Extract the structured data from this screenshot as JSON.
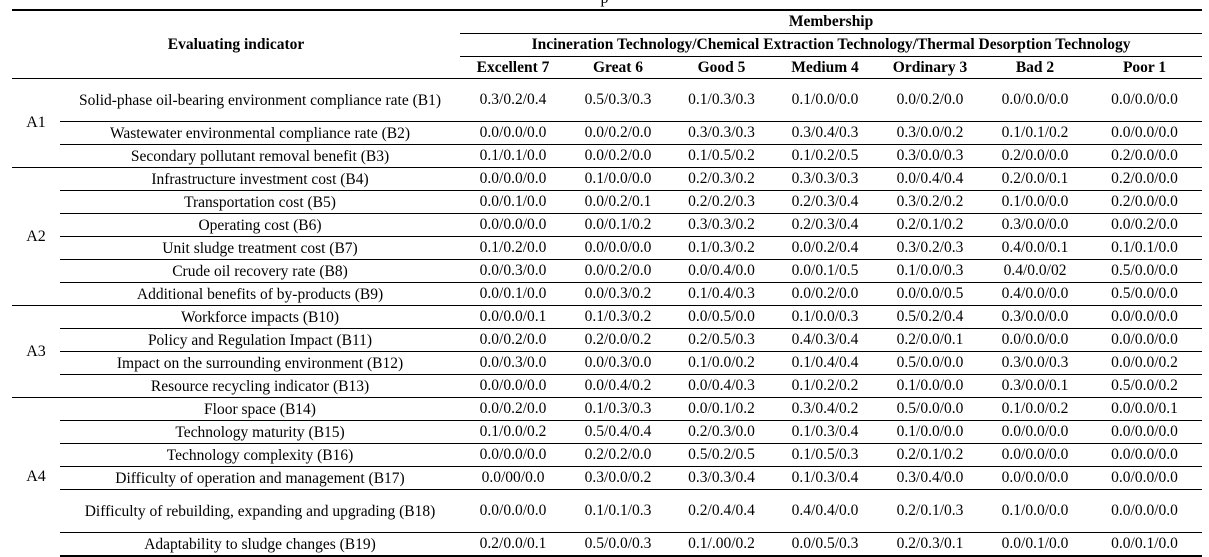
{
  "caption_fragment": "p",
  "table": {
    "header": {
      "evaluating_indicator": "Evaluating indicator",
      "membership": "Membership",
      "technologies": "Incineration Technology/Chemical Extraction Technology/Thermal Desorption Technology",
      "grades": [
        "Excellent 7",
        "Great 6",
        "Good 5",
        "Medium 4",
        "Ordinary 3",
        "Bad 2",
        "Poor 1"
      ]
    },
    "groups": [
      {
        "label": "A1",
        "rows": [
          {
            "indicator": "Solid-phase oil-bearing environment compliance rate (B1)",
            "values": [
              "0.3/0.2/0.4",
              "0.5/0.3/0.3",
              "0.1/0.3/0.3",
              "0.1/0.0/0.0",
              "0.0/0.2/0.0",
              "0.0/0.0/0.0",
              "0.0/0.0/0.0"
            ]
          },
          {
            "indicator": "Wastewater environmental compliance rate (B2)",
            "values": [
              "0.0/0.0/0.0",
              "0.0/0.2/0.0",
              "0.3/0.3/0.3",
              "0.3/0.4/0.3",
              "0.3/0.0/0.2",
              "0.1/0.1/0.2",
              "0.0/0.0/0.0"
            ]
          },
          {
            "indicator": "Secondary pollutant removal benefit (B3)",
            "values": [
              "0.1/0.1/0.0",
              "0.0/0.2/0.0",
              "0.1/0.5/0.2",
              "0.1/0.2/0.5",
              "0.3/0.0/0.3",
              "0.2/0.0/0.0",
              "0.2/0.0/0.0"
            ]
          }
        ]
      },
      {
        "label": "A2",
        "rows": [
          {
            "indicator": "Infrastructure investment cost (B4)",
            "values": [
              "0.0/0.0/0.0",
              "0.1/0.0/0.0",
              "0.2/0.3/0.2",
              "0.3/0.3/0.3",
              "0.0/0.4/0.4",
              "0.2/0.0/0.1",
              "0.2/0.0/0.0"
            ]
          },
          {
            "indicator": "Transportation cost (B5)",
            "values": [
              "0.0/0.1/0.0",
              "0.0/0.2/0.1",
              "0.2/0.2/0.3",
              "0.2/0.3/0.4",
              "0.3/0.2/0.2",
              "0.1/0.0/0.0",
              "0.2/0.0/0.0"
            ]
          },
          {
            "indicator": "Operating cost (B6)",
            "values": [
              "0.0/0.0/0.0",
              "0.0/0.1/0.2",
              "0.3/0.3/0.2",
              "0.2/0.3/0.4",
              "0.2/0.1/0.2",
              "0.3/0.0/0.0",
              "0.0/0.2/0.0"
            ]
          },
          {
            "indicator": "Unit sludge treatment cost (B7)",
            "values": [
              "0.1/0.2/0.0",
              "0.0/0.0/0.0",
              "0.1/0.3/0.2",
              "0.0/0.2/0.4",
              "0.3/0.2/0.3",
              "0.4/0.0/0.1",
              "0.1/0.1/0.0"
            ]
          },
          {
            "indicator": "Crude oil recovery rate (B8)",
            "values": [
              "0.0/0.3/0.0",
              "0.0/0.2/0.0",
              "0.0/0.4/0.0",
              "0.0/0.1/0.5",
              "0.1/0.0/0.3",
              "0.4/0.0/02",
              "0.5/0.0/0.0"
            ]
          },
          {
            "indicator": "Additional benefits of by-products (B9)",
            "values": [
              "0.0/0.1/0.0",
              "0.0/0.3/0.2",
              "0.1/0.4/0.3",
              "0.0/0.2/0.0",
              "0.0/0.0/0.5",
              "0.4/0.0/0.0",
              "0.5/0.0/0.0"
            ]
          }
        ]
      },
      {
        "label": "A3",
        "rows": [
          {
            "indicator": "Workforce impacts (B10)",
            "values": [
              "0.0/0.0/0.1",
              "0.1/0.3/0.2",
              "0.0/0.5/0.0",
              "0.1/0.0/0.3",
              "0.5/0.2/0.4",
              "0.3/0.0/0.0",
              "0.0/0.0/0.0"
            ]
          },
          {
            "indicator": "Policy and Regulation Impact (B11)",
            "values": [
              "0.0/0.2/0.0",
              "0.2/0.0/0.2",
              "0.2/0.5/0.3",
              "0.4/0.3/0.4",
              "0.2/0.0/0.1",
              "0.0/0.0/0.0",
              "0.0/0.0/0.0"
            ]
          },
          {
            "indicator": "Impact on the surrounding environment (B12)",
            "values": [
              "0.0/0.3/0.0",
              "0.0/0.3/0.0",
              "0.1/0.0/0.2",
              "0.1/0.4/0.4",
              "0.5/0.0/0.0",
              "0.3/0.0/0.3",
              "0.0/0.0/0.2"
            ]
          },
          {
            "indicator": "Resource recycling indicator (B13)",
            "values": [
              "0.0/0.0/0.0",
              "0.0/0.4/0.2",
              "0.0/0.4/0.3",
              "0.1/0.2/0.2",
              "0.1/0.0/0.0",
              "0.3/0.0/0.1",
              "0.5/0.0/0.2"
            ]
          }
        ]
      },
      {
        "label": "A4",
        "rows": [
          {
            "indicator": "Floor space (B14)",
            "values": [
              "0.0/0.2/0.0",
              "0.1/0.3/0.3",
              "0.0/0.1/0.2",
              "0.3/0.4/0.2",
              "0.5/0.0/0.0",
              "0.1/0.0/0.2",
              "0.0/0.0/0.1"
            ]
          },
          {
            "indicator": "Technology maturity (B15)",
            "values": [
              "0.1/0.0/0.2",
              "0.5/0.4/0.4",
              "0.2/0.3/0.0",
              "0.1/0.3/0.4",
              "0.1/0.0/0.0",
              "0.0/0.0/0.0",
              "0.0/0.0/0.0"
            ]
          },
          {
            "indicator": "Technology complexity (B16)",
            "values": [
              "0.0/0.0/0.0",
              "0.2/0.2/0.0",
              "0.5/0.2/0.5",
              "0.1/0.5/0.3",
              "0.2/0.1/0.2",
              "0.0/0.0/0.0",
              "0.0/0.0/0.0"
            ]
          },
          {
            "indicator": "Difficulty of operation and management (B17)",
            "values": [
              "0.0/00/0.0",
              "0.3/0.0/0.2",
              "0.3/0.3/0.4",
              "0.1/0.3/0.4",
              "0.3/0.4/0.0",
              "0.0/0.0/0.0",
              "0.0/0.0/0.0"
            ]
          },
          {
            "indicator": "Difficulty of rebuilding, expanding and upgrading (B18)",
            "values": [
              "0.0/0.0/0.0",
              "0.1/0.1/0.3",
              "0.2/0.4/0.4",
              "0.4/0.4/0.0",
              "0.2/0.1/0.3",
              "0.1/0.0/0.0",
              "0.0/0.0/0.0"
            ]
          },
          {
            "indicator": "Adaptability to sludge changes (B19)",
            "values": [
              "0.2/0.0/0.1",
              "0.5/0.0/0.3",
              "0.1/.00/0.2",
              "0.0/0.5/0.3",
              "0.2/0.3/0.1",
              "0.0/0.1/0.0",
              "0.0/0.1/0.0"
            ]
          }
        ]
      }
    ]
  }
}
